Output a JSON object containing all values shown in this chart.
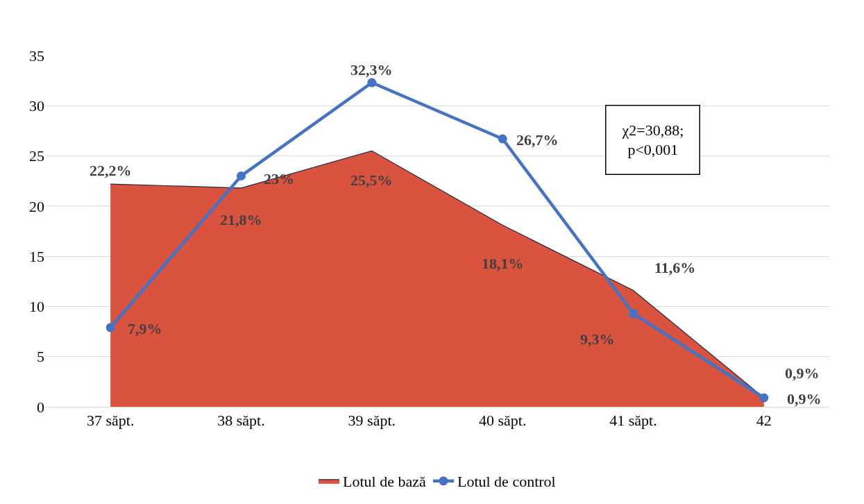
{
  "chart_data": {
    "type": "area",
    "categories": [
      "37 săpt.",
      "38 săpt.",
      "39 săpt.",
      "40 săpt.",
      "41 săpt.",
      "42"
    ],
    "series": [
      {
        "name": "Lotul de bază",
        "color": "#d9533f",
        "values": [
          22.2,
          21.8,
          25.5,
          18.1,
          11.6,
          0.9
        ],
        "value_labels": [
          "22,2%",
          "21,8%",
          "25,5%",
          "18,1%",
          "11,6%",
          "0,9%"
        ]
      },
      {
        "name": "Lotul de control",
        "type": "line",
        "color": "#4472c4",
        "values": [
          7.9,
          23,
          32.3,
          26.7,
          9.3,
          0.9
        ],
        "value_labels": [
          "7,9%",
          "23%",
          "32,3%",
          "26,7%",
          "9,3%",
          "0,9%"
        ],
        "marker": "circle"
      }
    ],
    "ylim": [
      0,
      35
    ],
    "yticks": [
      0,
      5,
      10,
      15,
      20,
      25,
      30,
      35
    ],
    "grid": "y",
    "legend": "bottom",
    "annotations": [
      "χ2=30,88;\np<0,001"
    ]
  }
}
